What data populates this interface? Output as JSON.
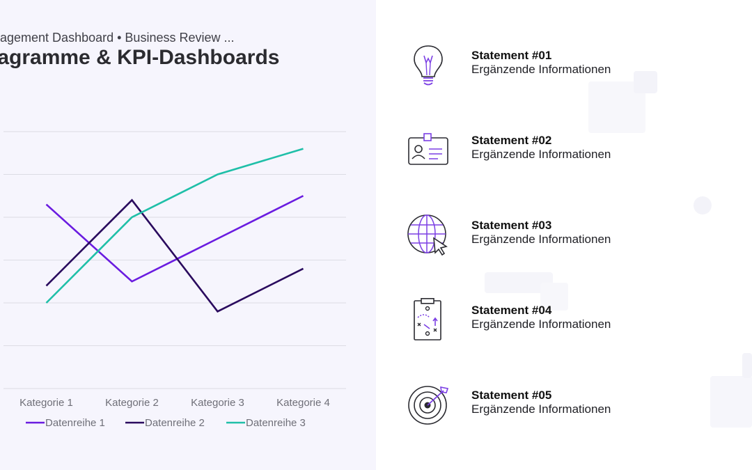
{
  "header": {
    "subtitle": "nagement Dashboard • Business Review ...",
    "title": "iagramme & KPI-Dashboards"
  },
  "chart_data": {
    "type": "line",
    "categories": [
      "Kategorie 1",
      "Kategorie 2",
      "Kategorie 3",
      "Kategorie 4"
    ],
    "series": [
      {
        "name": "Datenreihe 1",
        "values": [
          4.3,
          2.5,
          3.5,
          4.5
        ],
        "color": "#6a1be0"
      },
      {
        "name": "Datenreihe 2",
        "values": [
          2.4,
          4.4,
          1.8,
          2.8
        ],
        "color": "#2a0a5e"
      },
      {
        "name": "Datenreihe 3",
        "values": [
          2.0,
          4.0,
          5.0,
          5.6
        ],
        "color": "#1fbfa8"
      }
    ],
    "ylim": [
      0,
      6
    ],
    "grid": true,
    "legend": "bottom"
  },
  "statements": [
    {
      "title": "Statement #01",
      "info": "Ergänzende Informationen",
      "icon": "lightbulb-icon"
    },
    {
      "title": "Statement #02",
      "info": "Ergänzende Informationen",
      "icon": "id-card-icon"
    },
    {
      "title": "Statement #03",
      "info": "Ergänzende Informationen",
      "icon": "globe-cursor-icon"
    },
    {
      "title": "Statement #04",
      "info": "Ergänzende Informationen",
      "icon": "strategy-clipboard-icon"
    },
    {
      "title": "Statement #05",
      "info": "Ergänzende Informationen",
      "icon": "target-dart-icon"
    }
  ],
  "colors": {
    "accent": "#7b3fe4",
    "panel": "#f6f5fd"
  }
}
